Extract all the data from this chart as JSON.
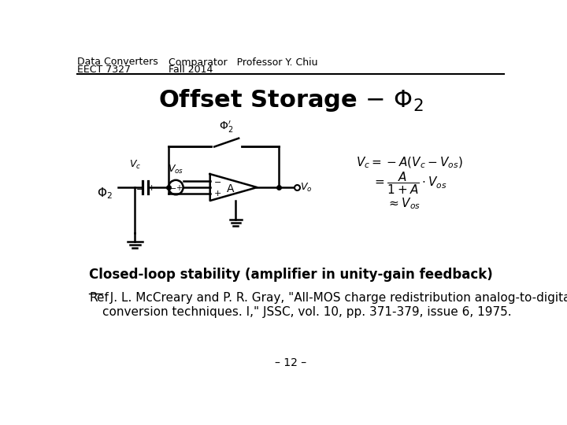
{
  "bg_color": "#ffffff",
  "header_left_line1": "Data Converters",
  "header_left_line2": "EECT 7327",
  "header_center_line1": "Comparator   Professor Y. Chiu",
  "header_center_line2": "Fall 2014",
  "closed_loop_text": "Closed-loop stability (amplifier in unity-gain feedback)",
  "ref_bold": "Ref",
  "ref_text": "  J. L. McCreary and P. R. Gray, \"All-MOS charge redistribution analog-to-digital\nconversion techniques. I,\" JSSC, vol. 10, pp. 371-379, issue 6, 1975.",
  "page_number": "– 12 –",
  "header_fontsize": 9,
  "title_fontsize": 22,
  "body_fontsize": 11,
  "small_fontsize": 9
}
